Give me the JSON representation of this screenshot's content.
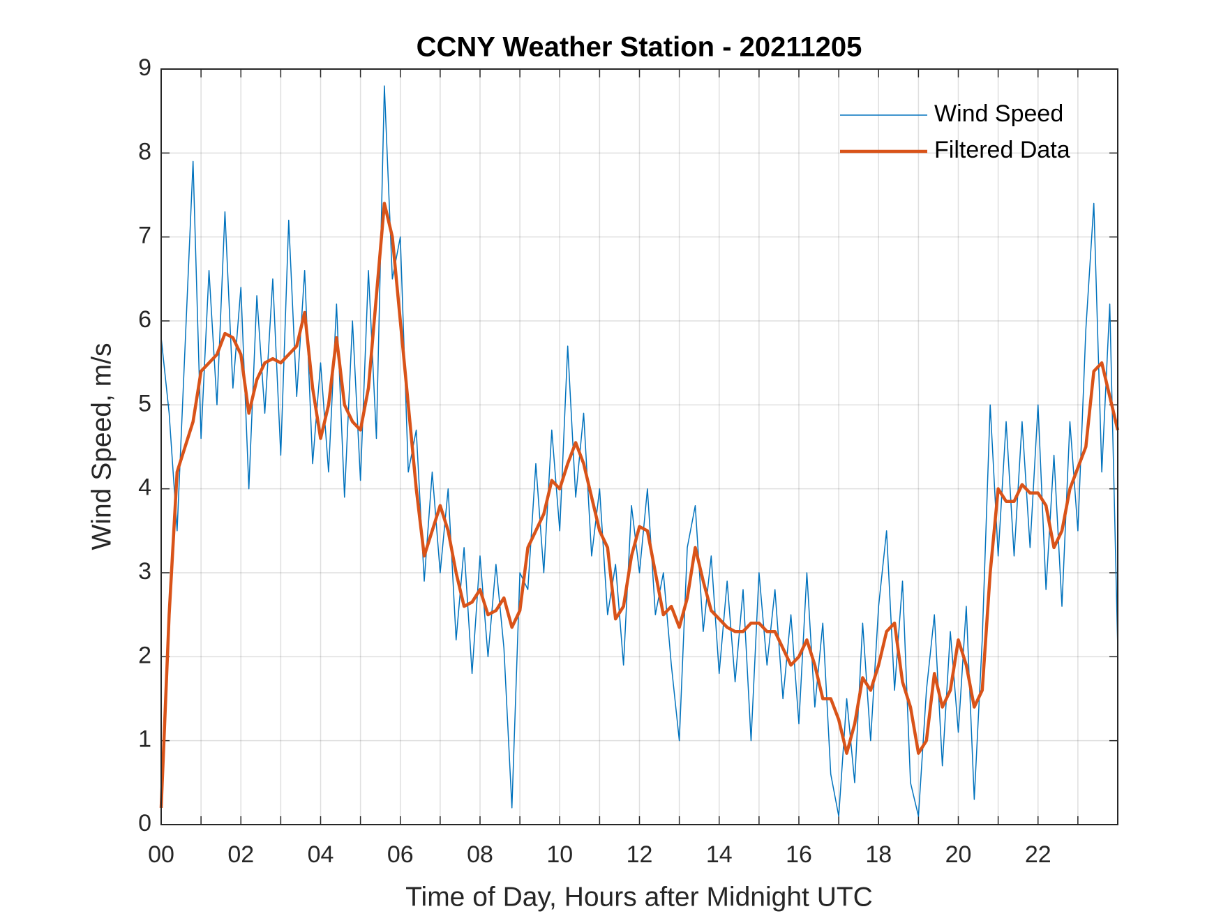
{
  "chart_data": {
    "type": "line",
    "title": "CCNY Weather Station - 20211205",
    "xlabel": "Time of Day, Hours after Midnight UTC",
    "ylabel": "Wind Speed, m/s",
    "x": [
      0,
      0.2,
      0.4,
      0.6,
      0.8,
      1,
      1.2,
      1.4,
      1.6,
      1.8,
      2,
      2.2,
      2.4,
      2.6,
      2.8,
      3,
      3.2,
      3.4,
      3.6,
      3.8,
      4,
      4.2,
      4.4,
      4.6,
      4.8,
      5,
      5.2,
      5.4,
      5.6,
      5.8,
      6,
      6.2,
      6.4,
      6.6,
      6.8,
      7,
      7.2,
      7.4,
      7.6,
      7.8,
      8,
      8.2,
      8.4,
      8.6,
      8.8,
      9,
      9.2,
      9.4,
      9.6,
      9.8,
      10,
      10.2,
      10.4,
      10.6,
      10.8,
      11,
      11.2,
      11.4,
      11.6,
      11.8,
      12,
      12.2,
      12.4,
      12.6,
      12.8,
      13,
      13.2,
      13.4,
      13.6,
      13.8,
      14,
      14.2,
      14.4,
      14.6,
      14.8,
      15,
      15.2,
      15.4,
      15.6,
      15.8,
      16,
      16.2,
      16.4,
      16.6,
      16.8,
      17,
      17.2,
      17.4,
      17.6,
      17.8,
      18,
      18.2,
      18.4,
      18.6,
      18.8,
      19,
      19.2,
      19.4,
      19.6,
      19.8,
      20,
      20.2,
      20.4,
      20.6,
      20.8,
      21,
      21.2,
      21.4,
      21.6,
      21.8,
      22,
      22.2,
      22.4,
      22.6,
      22.8,
      23,
      23.2,
      23.4,
      23.6,
      23.8,
      24
    ],
    "series": [
      {
        "name": "Wind Speed",
        "color": "#0072BD",
        "width": 1.5,
        "values": [
          5.8,
          4.9,
          3.5,
          5.7,
          7.9,
          4.6,
          6.6,
          5.0,
          7.3,
          5.2,
          6.4,
          4.0,
          6.3,
          4.9,
          6.5,
          4.4,
          7.2,
          5.1,
          6.6,
          4.3,
          5.5,
          4.2,
          6.2,
          3.9,
          6.0,
          4.1,
          6.6,
          4.6,
          8.8,
          6.5,
          7.0,
          4.2,
          4.7,
          2.9,
          4.2,
          3.0,
          4.0,
          2.2,
          3.3,
          1.8,
          3.2,
          2.0,
          3.1,
          2.1,
          0.2,
          3.0,
          2.8,
          4.3,
          3.0,
          4.7,
          3.5,
          5.7,
          3.9,
          4.9,
          3.2,
          4.0,
          2.5,
          3.1,
          1.9,
          3.8,
          3.0,
          4.0,
          2.5,
          3.0,
          1.9,
          1.0,
          3.3,
          3.8,
          2.3,
          3.2,
          1.8,
          2.9,
          1.7,
          2.8,
          1.0,
          3.0,
          1.9,
          2.8,
          1.5,
          2.5,
          1.2,
          3.0,
          1.4,
          2.4,
          0.6,
          0.1,
          1.5,
          0.5,
          2.4,
          1.0,
          2.6,
          3.5,
          1.6,
          2.9,
          0.5,
          0.1,
          1.6,
          2.5,
          0.7,
          2.3,
          1.1,
          2.6,
          0.3,
          2.2,
          5.0,
          3.2,
          4.8,
          3.2,
          4.8,
          3.3,
          5.0,
          2.8,
          4.4,
          2.6,
          4.8,
          3.5,
          5.9,
          7.4,
          4.2,
          6.2,
          2.1
        ]
      },
      {
        "name": "Filtered Data",
        "color": "#D95319",
        "width": 4.5,
        "values": [
          0.2,
          2.5,
          4.2,
          4.5,
          4.8,
          5.4,
          5.5,
          5.6,
          5.85,
          5.8,
          5.6,
          4.9,
          5.3,
          5.5,
          5.55,
          5.5,
          5.6,
          5.7,
          6.1,
          5.2,
          4.6,
          5.0,
          5.8,
          5.0,
          4.8,
          4.7,
          5.2,
          6.3,
          7.4,
          7.0,
          6.0,
          5.0,
          4.0,
          3.2,
          3.5,
          3.8,
          3.5,
          3.0,
          2.6,
          2.65,
          2.8,
          2.5,
          2.55,
          2.7,
          2.35,
          2.55,
          3.3,
          3.5,
          3.7,
          4.1,
          4.0,
          4.3,
          4.55,
          4.3,
          3.9,
          3.5,
          3.3,
          2.45,
          2.6,
          3.2,
          3.55,
          3.5,
          3.0,
          2.5,
          2.6,
          2.35,
          2.7,
          3.3,
          2.9,
          2.55,
          2.45,
          2.35,
          2.3,
          2.3,
          2.4,
          2.4,
          2.3,
          2.3,
          2.1,
          1.9,
          2.0,
          2.2,
          1.9,
          1.5,
          1.5,
          1.25,
          0.85,
          1.2,
          1.75,
          1.6,
          1.9,
          2.3,
          2.4,
          1.7,
          1.4,
          0.85,
          1.0,
          1.8,
          1.4,
          1.6,
          2.2,
          1.9,
          1.4,
          1.6,
          3.0,
          4.0,
          3.85,
          3.85,
          4.05,
          3.95,
          3.95,
          3.8,
          3.3,
          3.5,
          4.0,
          4.25,
          4.5,
          5.4,
          5.5,
          5.1,
          4.7
        ]
      }
    ],
    "xlim": [
      0,
      24
    ],
    "ylim": [
      0,
      9
    ],
    "xticks": [
      {
        "value": 0,
        "label": "00"
      },
      {
        "value": 2,
        "label": "02"
      },
      {
        "value": 4,
        "label": "04"
      },
      {
        "value": 6,
        "label": "06"
      },
      {
        "value": 8,
        "label": "08"
      },
      {
        "value": 10,
        "label": "10"
      },
      {
        "value": 12,
        "label": "12"
      },
      {
        "value": 14,
        "label": "14"
      },
      {
        "value": 16,
        "label": "16"
      },
      {
        "value": 18,
        "label": "18"
      },
      {
        "value": 20,
        "label": "20"
      },
      {
        "value": 22,
        "label": "22"
      }
    ],
    "xminorticks": [
      1,
      3,
      5,
      7,
      9,
      11,
      13,
      15,
      17,
      19,
      21,
      23
    ],
    "yticks": [
      0,
      1,
      2,
      3,
      4,
      5,
      6,
      7,
      8,
      9
    ],
    "grid": true,
    "legend": "northeast"
  }
}
